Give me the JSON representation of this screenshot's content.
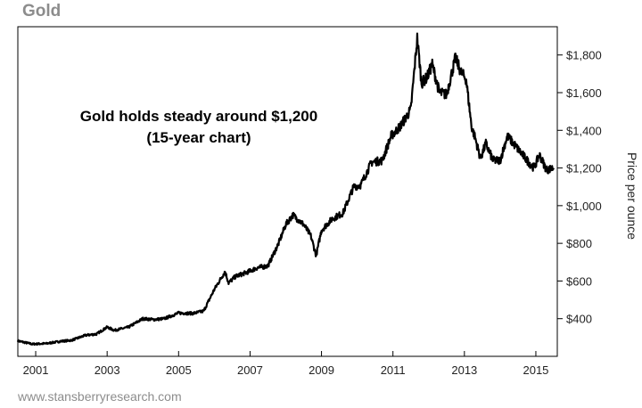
{
  "header": {
    "title": "Gold"
  },
  "footer": {
    "source": "www.stansberryresearch.com"
  },
  "chart_data": {
    "type": "line",
    "title": "Gold",
    "annotation": [
      "Gold holds steady around $1,200",
      "(15-year chart)"
    ],
    "xlabel": "",
    "ylabel": "Price per ounce",
    "xlim": [
      2000.5,
      2015.6
    ],
    "ylim": [
      200,
      1950
    ],
    "x_ticks": [
      2001,
      2003,
      2005,
      2007,
      2009,
      2011,
      2013,
      2015
    ],
    "x_tick_labels": [
      "2001",
      "2003",
      "2005",
      "2007",
      "2009",
      "2011",
      "2013",
      "2015"
    ],
    "y_ticks": [
      400,
      600,
      800,
      1000,
      1200,
      1400,
      1600,
      1800
    ],
    "y_tick_labels": [
      "$400",
      "$600",
      "$800",
      "$1,000",
      "$1,200",
      "$1,400",
      "$1,600",
      "$1,800"
    ],
    "grid": false,
    "line_color": "#000000",
    "series": [
      {
        "x": [
          2000.5,
          2000.9,
          2001.3,
          2001.7,
          2002.0,
          2002.4,
          2002.7,
          2003.0,
          2003.2,
          2003.6,
          2004.0,
          2004.3,
          2004.6,
          2005.0,
          2005.4,
          2005.7,
          2006.0,
          2006.3,
          2006.4,
          2006.6,
          2006.9,
          2007.2,
          2007.5,
          2007.8,
          2008.0,
          2008.2,
          2008.5,
          2008.7,
          2008.85,
          2009.0,
          2009.3,
          2009.6,
          2009.9,
          2010.1,
          2010.4,
          2010.7,
          2010.95,
          2011.2,
          2011.5,
          2011.68,
          2011.8,
          2011.95,
          2012.1,
          2012.3,
          2012.5,
          2012.75,
          2012.9,
          2013.05,
          2013.2,
          2013.3,
          2013.45,
          2013.6,
          2013.8,
          2014.0,
          2014.2,
          2014.5,
          2014.8,
          2014.95,
          2015.1,
          2015.3,
          2015.5
        ],
        "values": [
          282,
          265,
          268,
          280,
          285,
          312,
          318,
          355,
          338,
          355,
          400,
          395,
          400,
          430,
          428,
          440,
          555,
          650,
          590,
          625,
          645,
          670,
          680,
          800,
          900,
          950,
          900,
          840,
          735,
          870,
          930,
          960,
          1100,
          1110,
          1230,
          1240,
          1370,
          1420,
          1510,
          1890,
          1650,
          1680,
          1750,
          1600,
          1590,
          1785,
          1710,
          1670,
          1420,
          1360,
          1250,
          1330,
          1240,
          1240,
          1370,
          1300,
          1230,
          1200,
          1270,
          1190,
          1200
        ]
      }
    ]
  }
}
